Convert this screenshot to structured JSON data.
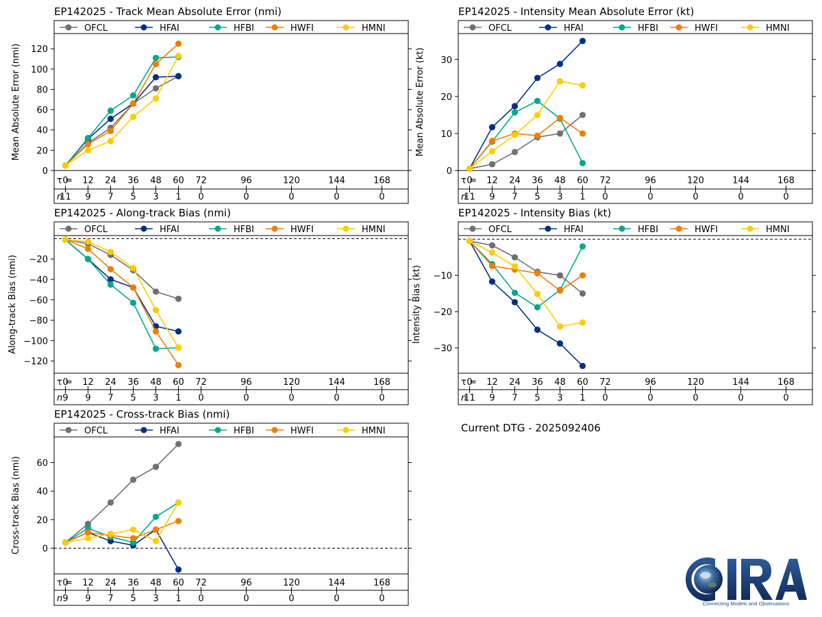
{
  "colors": {
    "OFCL": "#707070",
    "HFAI": "#003087",
    "HFBI": "#00a88f",
    "HWFI": "#ee7f00",
    "HMNI": "#ffcc00"
  },
  "legend": [
    "OFCL",
    "HFAI",
    "HFBI",
    "HWFI",
    "HMNI"
  ],
  "tau_symbol": "τ =",
  "n_symbol": "n",
  "footer": {
    "dtg": "Current DTG - 2025092406"
  },
  "logo": {
    "text": "CIRA",
    "tagline": "Connecting Models and Observations"
  },
  "chart_data": [
    {
      "id": "track",
      "type": "line",
      "title": "EP142025 - Track Mean Absolute Error (nmi)",
      "ylabel": "Mean Absolute Error (nmi)",
      "ylim": [
        0,
        135
      ],
      "yticks": [
        0,
        20,
        40,
        60,
        80,
        100,
        120
      ],
      "zero_line": false,
      "x": [
        0,
        12,
        24,
        36,
        48,
        60
      ],
      "tau": [
        "0",
        "12",
        "24",
        "36",
        "48",
        "60",
        "72",
        "96",
        "120",
        "144",
        "168"
      ],
      "n": [
        "11",
        "9",
        "7",
        "5",
        "3",
        "1",
        "0",
        "0",
        "0",
        "0",
        "0"
      ],
      "series": [
        {
          "name": "OFCL",
          "values": [
            5,
            27,
            42,
            66,
            81,
            93
          ]
        },
        {
          "name": "HFAI",
          "values": [
            5,
            31,
            51,
            66,
            92,
            93
          ]
        },
        {
          "name": "HFBI",
          "values": [
            5,
            32,
            59,
            74,
            111,
            112
          ]
        },
        {
          "name": "HWFI",
          "values": [
            5,
            26,
            39,
            66,
            105,
            125
          ]
        },
        {
          "name": "HMNI",
          "values": [
            5,
            20,
            29,
            53,
            71,
            113
          ]
        }
      ]
    },
    {
      "id": "intensity",
      "type": "line",
      "title": "EP142025 - Intensity Mean Absolute Error (kt)",
      "ylabel": "Mean Absolute Error (kt)",
      "ylim": [
        0,
        37
      ],
      "yticks": [
        0,
        10,
        20,
        30
      ],
      "zero_line": false,
      "x": [
        0,
        12,
        24,
        36,
        48,
        60
      ],
      "tau": [
        "0",
        "12",
        "24",
        "36",
        "48",
        "60",
        "72",
        "96",
        "120",
        "144",
        "168"
      ],
      "n": [
        "11",
        "9",
        "7",
        "5",
        "3",
        "1",
        "0",
        "0",
        "0",
        "0",
        "0"
      ],
      "series": [
        {
          "name": "OFCL",
          "values": [
            0.5,
            1.7,
            5.0,
            9.0,
            10.0,
            15.0
          ]
        },
        {
          "name": "HFAI",
          "values": [
            0.5,
            11.7,
            17.4,
            25.0,
            28.8,
            35.0
          ]
        },
        {
          "name": "HFBI",
          "values": [
            0.5,
            7.8,
            15.7,
            18.8,
            14.0,
            2.0
          ]
        },
        {
          "name": "HWFI",
          "values": [
            0.5,
            8.0,
            10.0,
            9.4,
            14.2,
            10.0
          ]
        },
        {
          "name": "HMNI",
          "values": [
            0.5,
            5.2,
            9.6,
            15.0,
            24.1,
            23.0
          ]
        }
      ]
    },
    {
      "id": "along",
      "type": "line",
      "title": "EP142025 - Along-track Bias (nmi)",
      "ylabel": "Along-track Bias (nmi)",
      "ylim": [
        -132,
        3
      ],
      "yticks": [
        -120,
        -100,
        -80,
        -60,
        -40,
        -20
      ],
      "zero_line": true,
      "x": [
        0,
        12,
        24,
        36,
        48,
        60
      ],
      "tau": [
        "0",
        "12",
        "24",
        "36",
        "48",
        "60",
        "72",
        "96",
        "120",
        "144",
        "168"
      ],
      "n": [
        "9",
        "9",
        "7",
        "5",
        "3",
        "1",
        "0",
        "0",
        "0",
        "0",
        "0"
      ],
      "series": [
        {
          "name": "OFCL",
          "values": [
            -1,
            -5,
            -16,
            -31,
            -52,
            -59
          ]
        },
        {
          "name": "HFAI",
          "values": [
            -1,
            -20,
            -40,
            -48,
            -86,
            -91
          ]
        },
        {
          "name": "HFBI",
          "values": [
            -1,
            -20,
            -45,
            -63,
            -108,
            -107
          ]
        },
        {
          "name": "HWFI",
          "values": [
            -1,
            -10,
            -30,
            -48,
            -91,
            -124
          ]
        },
        {
          "name": "HMNI",
          "values": [
            -1,
            -3,
            -13,
            -29,
            -70,
            -107
          ]
        }
      ]
    },
    {
      "id": "intbias",
      "type": "line",
      "title": "EP142025 - Intensity Bias (kt)",
      "ylabel": "Intensity Bias (kt)",
      "ylim": [
        -37,
        1
      ],
      "yticks": [
        -30,
        -20,
        -10
      ],
      "zero_line": true,
      "x": [
        0,
        12,
        24,
        36,
        48,
        60
      ],
      "tau": [
        "0",
        "12",
        "24",
        "36",
        "48",
        "60",
        "72",
        "96",
        "120",
        "144",
        "168"
      ],
      "n": [
        "11",
        "9",
        "7",
        "5",
        "3",
        "1",
        "0",
        "0",
        "0",
        "0",
        "0"
      ],
      "series": [
        {
          "name": "OFCL",
          "values": [
            -0.5,
            -1.7,
            -5.0,
            -9.0,
            -10.0,
            -15.0
          ]
        },
        {
          "name": "HFAI",
          "values": [
            -0.5,
            -11.7,
            -17.4,
            -25.0,
            -28.8,
            -35.0
          ]
        },
        {
          "name": "HFBI",
          "values": [
            -0.5,
            -6.9,
            -14.8,
            -18.8,
            -14.0,
            -2.0
          ]
        },
        {
          "name": "HWFI",
          "values": [
            -0.5,
            -7.4,
            -8.4,
            -9.4,
            -14.2,
            -10.0
          ]
        },
        {
          "name": "HMNI",
          "values": [
            -0.5,
            -3.7,
            -7.5,
            -15.1,
            -24.1,
            -23.0
          ]
        }
      ]
    },
    {
      "id": "cross",
      "type": "line",
      "title": "EP142025 - Cross-track Bias (nmi)",
      "ylabel": "Cross-track Bias (nmi)",
      "ylim": [
        -18,
        78
      ],
      "yticks": [
        0,
        20,
        40,
        60
      ],
      "zero_line": true,
      "x": [
        0,
        12,
        24,
        36,
        48,
        60
      ],
      "tau": [
        "0",
        "12",
        "24",
        "36",
        "48",
        "60",
        "72",
        "96",
        "120",
        "144",
        "168"
      ],
      "n": [
        "9",
        "9",
        "7",
        "5",
        "3",
        "1",
        "0",
        "0",
        "0",
        "0",
        "0"
      ],
      "series": [
        {
          "name": "OFCL",
          "values": [
            4,
            17,
            32,
            48,
            57,
            73
          ]
        },
        {
          "name": "HFAI",
          "values": [
            4,
            11,
            5,
            2,
            13,
            -15
          ]
        },
        {
          "name": "HFBI",
          "values": [
            4,
            14,
            8,
            4,
            22,
            32
          ]
        },
        {
          "name": "HWFI",
          "values": [
            4,
            11,
            9,
            7,
            13,
            19
          ]
        },
        {
          "name": "HMNI",
          "values": [
            4,
            7,
            10,
            13,
            5,
            32
          ]
        }
      ]
    }
  ]
}
